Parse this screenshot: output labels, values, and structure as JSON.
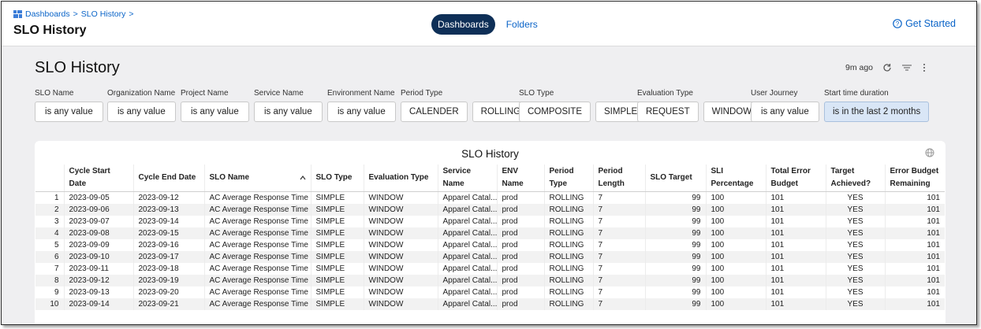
{
  "breadcrumb": {
    "items": [
      "Dashboards",
      "SLO History"
    ],
    "separator": ">"
  },
  "header": {
    "title": "SLO History",
    "tabs": [
      "Dashboards",
      "Folders"
    ],
    "help": "Get Started"
  },
  "dashboard": {
    "title": "SLO History",
    "updated": "9m ago"
  },
  "filters": [
    {
      "label": "SLO Name",
      "options": [
        "is any value"
      ]
    },
    {
      "label": "Organization Name",
      "options": [
        "is any value"
      ]
    },
    {
      "label": "Project Name",
      "options": [
        "is any value"
      ]
    },
    {
      "label": "Service Name",
      "options": [
        "is any value"
      ]
    },
    {
      "label": "Environment Name",
      "options": [
        "is any value"
      ]
    },
    {
      "label": "Period Type",
      "options": [
        "CALENDER",
        "ROLLING"
      ]
    },
    {
      "label": "SLO Type",
      "options": [
        "COMPOSITE",
        "SIMPLE"
      ]
    },
    {
      "label": "Evaluation Type",
      "options": [
        "REQUEST",
        "WINDOW"
      ]
    },
    {
      "label": "User Journey",
      "options": [
        "is any value"
      ]
    },
    {
      "label": "Start time duration",
      "options": [
        "is in the last 2 months"
      ]
    }
  ],
  "table": {
    "title": "SLO History",
    "columns": [
      "Cycle Start Date",
      "Cycle End Date",
      "SLO Name",
      "SLO Type",
      "Evaluation Type",
      "Service Name",
      "ENV Name",
      "Period Type",
      "Period Length",
      "SLO Target",
      "SLI Percentage",
      "Total Error Budget",
      "Target Achieved?",
      "Error Budget Remaining"
    ],
    "row_numbers": [
      1,
      2,
      3,
      4,
      5,
      6,
      7,
      8,
      9,
      10
    ],
    "rows": [
      [
        "2023-09-05",
        "2023-09-12",
        "AC Average Response Time",
        "SIMPLE",
        "WINDOW",
        "Apparel Catal...",
        "prod",
        "ROLLING",
        7,
        99,
        100,
        101,
        "YES",
        101
      ],
      [
        "2023-09-06",
        "2023-09-13",
        "AC Average Response Time",
        "SIMPLE",
        "WINDOW",
        "Apparel Catal...",
        "prod",
        "ROLLING",
        7,
        99,
        100,
        101,
        "YES",
        101
      ],
      [
        "2023-09-07",
        "2023-09-14",
        "AC Average Response Time",
        "SIMPLE",
        "WINDOW",
        "Apparel Catal...",
        "prod",
        "ROLLING",
        7,
        99,
        100,
        101,
        "YES",
        101
      ],
      [
        "2023-09-08",
        "2023-09-15",
        "AC Average Response Time",
        "SIMPLE",
        "WINDOW",
        "Apparel Catal...",
        "prod",
        "ROLLING",
        7,
        99,
        100,
        101,
        "YES",
        101
      ],
      [
        "2023-09-09",
        "2023-09-16",
        "AC Average Response Time",
        "SIMPLE",
        "WINDOW",
        "Apparel Catal...",
        "prod",
        "ROLLING",
        7,
        99,
        100,
        101,
        "YES",
        101
      ],
      [
        "2023-09-10",
        "2023-09-17",
        "AC Average Response Time",
        "SIMPLE",
        "WINDOW",
        "Apparel Catal...",
        "prod",
        "ROLLING",
        7,
        99,
        100,
        101,
        "YES",
        101
      ],
      [
        "2023-09-11",
        "2023-09-18",
        "AC Average Response Time",
        "SIMPLE",
        "WINDOW",
        "Apparel Catal...",
        "prod",
        "ROLLING",
        7,
        99,
        100,
        101,
        "YES",
        101
      ],
      [
        "2023-09-12",
        "2023-09-19",
        "AC Average Response Time",
        "SIMPLE",
        "WINDOW",
        "Apparel Catal...",
        "prod",
        "ROLLING",
        7,
        99,
        100,
        101,
        "YES",
        101
      ],
      [
        "2023-09-13",
        "2023-09-20",
        "AC Average Response Time",
        "SIMPLE",
        "WINDOW",
        "Apparel Catal...",
        "prod",
        "ROLLING",
        7,
        99,
        100,
        101,
        "YES",
        101
      ],
      [
        "2023-09-14",
        "2023-09-21",
        "AC Average Response Time",
        "SIMPLE",
        "WINDOW",
        "Apparel Catal...",
        "prod",
        "ROLLING",
        7,
        99,
        100,
        101,
        "YES",
        101
      ]
    ]
  }
}
